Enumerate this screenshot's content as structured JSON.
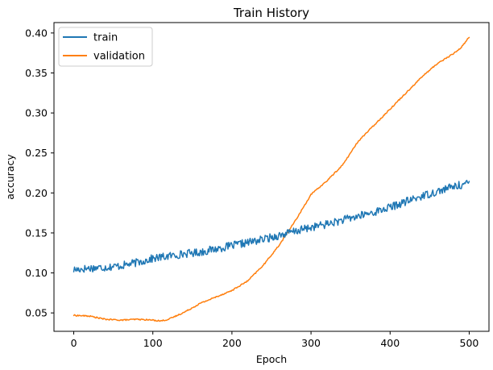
{
  "chart_data": {
    "type": "line",
    "title": "Train History",
    "xlabel": "Epoch",
    "ylabel": "accuracy",
    "xlim": [
      -25,
      525
    ],
    "ylim": [
      0.027,
      0.413
    ],
    "xticks": [
      0,
      100,
      200,
      300,
      400,
      500
    ],
    "yticks": [
      0.05,
      0.1,
      0.15,
      0.2,
      0.25,
      0.3,
      0.35,
      0.4
    ],
    "ytick_labels": [
      "0.05",
      "0.10",
      "0.15",
      "0.20",
      "0.25",
      "0.30",
      "0.35",
      "0.40"
    ],
    "grid": false,
    "legend_position": "upper-left",
    "series": [
      {
        "name": "train",
        "color": "#1f77b4",
        "noise": 0.005,
        "x": [
          0,
          20,
          40,
          60,
          80,
          100,
          120,
          140,
          160,
          180,
          200,
          220,
          240,
          260,
          280,
          300,
          320,
          340,
          360,
          380,
          400,
          420,
          440,
          460,
          480,
          500
        ],
        "y": [
          0.104,
          0.106,
          0.107,
          0.109,
          0.113,
          0.118,
          0.121,
          0.124,
          0.126,
          0.13,
          0.134,
          0.138,
          0.142,
          0.147,
          0.152,
          0.157,
          0.161,
          0.166,
          0.171,
          0.176,
          0.182,
          0.189,
          0.196,
          0.202,
          0.208,
          0.212
        ]
      },
      {
        "name": "validation",
        "color": "#ff7f0e",
        "noise": 0.0008,
        "x": [
          0,
          20,
          40,
          60,
          80,
          100,
          110,
          120,
          140,
          160,
          180,
          200,
          220,
          240,
          260,
          280,
          300,
          320,
          340,
          360,
          380,
          400,
          420,
          440,
          460,
          480,
          490,
          500
        ],
        "y": [
          0.047,
          0.046,
          0.042,
          0.041,
          0.042,
          0.041,
          0.04,
          0.042,
          0.051,
          0.062,
          0.07,
          0.078,
          0.09,
          0.11,
          0.135,
          0.165,
          0.198,
          0.215,
          0.235,
          0.265,
          0.285,
          0.305,
          0.325,
          0.345,
          0.362,
          0.374,
          0.382,
          0.395
        ]
      }
    ]
  }
}
